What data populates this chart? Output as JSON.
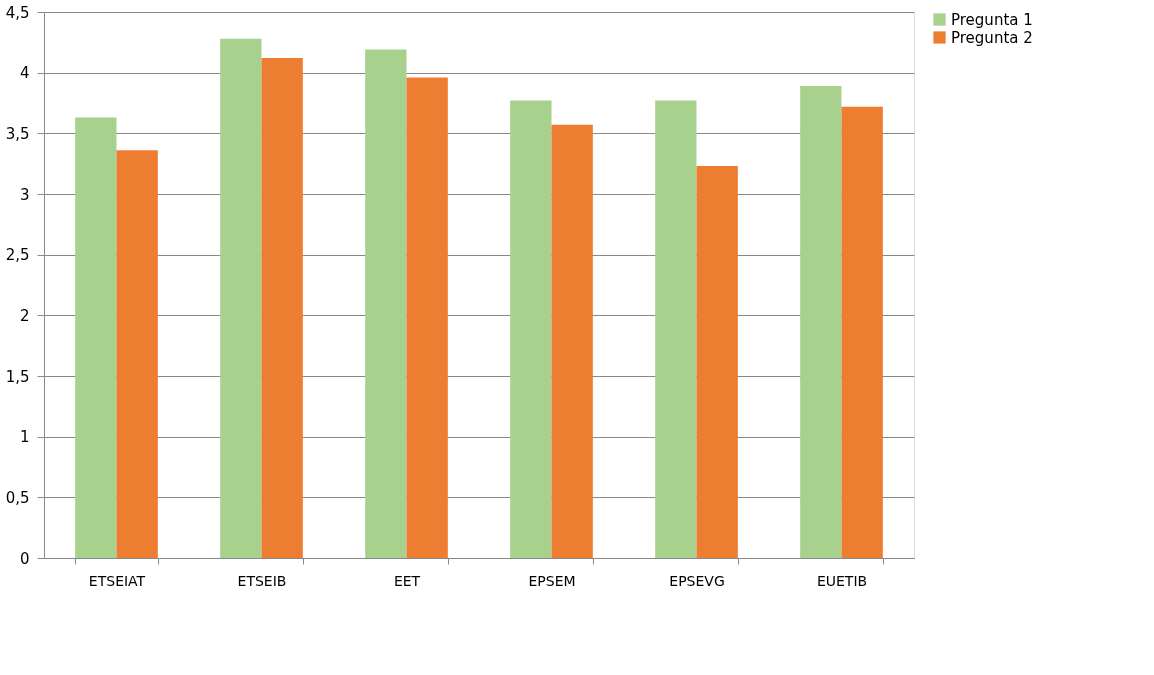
{
  "chart_data": {
    "type": "bar",
    "categories": [
      "ETSEIAT",
      "ETSEIB",
      "EET",
      "EPSEM",
      "EPSEVG",
      "EUETIB"
    ],
    "series": [
      {
        "name": "Pregunta 1",
        "color": "#a9d18e",
        "values": [
          3.63,
          4.28,
          4.19,
          3.77,
          3.77,
          3.89
        ]
      },
      {
        "name": "Pregunta 2",
        "color": "#ed7d31",
        "values": [
          3.36,
          4.12,
          3.96,
          3.57,
          3.23,
          3.72
        ]
      }
    ],
    "ylim": [
      0,
      4.5
    ],
    "yticks": [
      0,
      {
        "value": 0.5,
        "label": "0,5"
      },
      1,
      {
        "value": 1.5,
        "label": "1,5"
      },
      2,
      {
        "value": 2.5,
        "label": "2,5"
      },
      3,
      {
        "value": 3.5,
        "label": "3,5"
      },
      4,
      {
        "value": 4.5,
        "label": "4,5"
      }
    ],
    "grid": "y",
    "legend": "right"
  }
}
